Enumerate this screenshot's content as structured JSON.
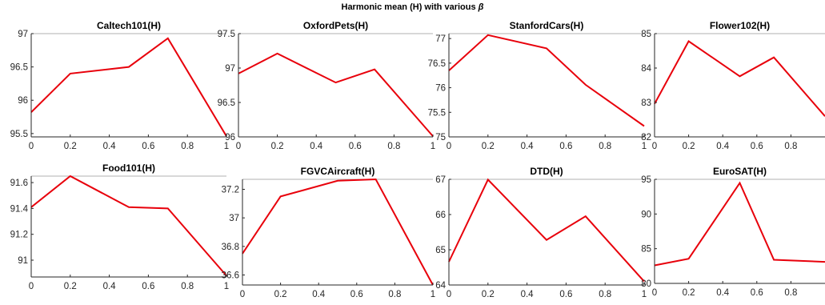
{
  "figure": {
    "title_prefix": "Harmonic mean (H) with various ",
    "title_symbol": "β"
  },
  "chart_data": [
    {
      "type": "line",
      "title": "Caltech101(H)",
      "x": [
        0,
        0.2,
        0.5,
        0.7,
        1
      ],
      "values": [
        95.82,
        96.4,
        96.5,
        96.93,
        95.46
      ],
      "xlim": [
        0,
        1
      ],
      "ylim": [
        95.45,
        97.0
      ],
      "xticks": [
        0,
        0.2,
        0.4,
        0.6,
        0.8,
        1
      ],
      "xtick_labels": [
        "0",
        "0.2",
        "0.4",
        "0.6",
        "0.8",
        "1"
      ],
      "yticks": [
        95.5,
        96,
        96.5,
        97
      ],
      "ytick_labels": [
        "95.5",
        "96",
        "96.5",
        "97"
      ],
      "color": "#e8000b"
    },
    {
      "type": "line",
      "title": "OxfordPets(H)",
      "x": [
        0,
        0.2,
        0.5,
        0.7,
        1
      ],
      "values": [
        96.92,
        97.21,
        96.79,
        96.98,
        96.01
      ],
      "xlim": [
        0,
        1
      ],
      "ylim": [
        96.0,
        97.5
      ],
      "xticks": [
        0,
        0.2,
        0.4,
        0.6,
        0.8,
        1
      ],
      "xtick_labels": [
        "0",
        "0.2",
        "0.4",
        "0.6",
        "0.8",
        "1"
      ],
      "yticks": [
        96,
        96.5,
        97,
        97.5
      ],
      "ytick_labels": [
        "96",
        "96.5",
        "97",
        "97.5"
      ],
      "color": "#e8000b"
    },
    {
      "type": "line",
      "title": "StanfordCars(H)",
      "x": [
        0,
        0.2,
        0.5,
        0.7,
        1
      ],
      "values": [
        76.35,
        77.07,
        76.8,
        76.06,
        75.22
      ],
      "xlim": [
        0,
        1
      ],
      "ylim": [
        75.0,
        77.1
      ],
      "xticks": [
        0,
        0.2,
        0.4,
        0.6,
        0.8,
        1
      ],
      "xtick_labels": [
        "0",
        "0.2",
        "0.4",
        "0.6",
        "0.8",
        "1"
      ],
      "yticks": [
        75,
        75.5,
        76,
        76.5,
        77
      ],
      "ytick_labels": [
        "75",
        "75.5",
        "76",
        "76.5",
        "77"
      ],
      "color": "#e8000b"
    },
    {
      "type": "line",
      "title": "Flower102(H)",
      "x": [
        0,
        0.2,
        0.5,
        0.7,
        1
      ],
      "values": [
        82.96,
        84.78,
        83.76,
        84.31,
        82.6
      ],
      "xlim": [
        0,
        1
      ],
      "ylim": [
        82.0,
        85.0
      ],
      "xticks": [
        0,
        0.2,
        0.4,
        0.6,
        0.8
      ],
      "xtick_labels": [
        "0",
        "0.2",
        "0.4",
        "0.6",
        "0.8"
      ],
      "yticks": [
        82,
        83,
        84,
        85
      ],
      "ytick_labels": [
        "82",
        "83",
        "84",
        "85"
      ],
      "color": "#e8000b"
    },
    {
      "type": "line",
      "title": "Food101(H)",
      "x": [
        0,
        0.2,
        0.5,
        0.7,
        1
      ],
      "values": [
        91.41,
        91.65,
        91.41,
        91.4,
        90.88
      ],
      "xlim": [
        0,
        1
      ],
      "ylim": [
        90.87,
        91.65
      ],
      "xticks": [
        0,
        0.2,
        0.4,
        0.6,
        0.8,
        1
      ],
      "xtick_labels": [
        "0",
        "0.2",
        "0.4",
        "0.6",
        "0.8",
        "1"
      ],
      "yticks": [
        91,
        91.2,
        91.4,
        91.6
      ],
      "ytick_labels": [
        "91",
        "91.2",
        "91.4",
        "91.6"
      ],
      "color": "#e8000b"
    },
    {
      "type": "line",
      "title": "FGVCAircraft(H)",
      "x": [
        0,
        0.2,
        0.5,
        0.7,
        1
      ],
      "values": [
        36.75,
        37.15,
        37.26,
        37.27,
        36.53
      ],
      "xlim": [
        0,
        1
      ],
      "ylim": [
        36.53,
        37.27
      ],
      "xticks": [
        0,
        0.2,
        0.4,
        0.6,
        0.8,
        1
      ],
      "xtick_labels": [
        "0",
        "0.2",
        "0.4",
        "0.6",
        "0.8",
        "1"
      ],
      "yticks": [
        36.6,
        36.8,
        37,
        37.2
      ],
      "ytick_labels": [
        "36.6",
        "36.8",
        "37",
        "37.2"
      ],
      "color": "#e8000b"
    },
    {
      "type": "line",
      "title": "DTD(H)",
      "x": [
        0,
        0.2,
        0.5,
        0.7,
        1
      ],
      "values": [
        64.66,
        66.99,
        65.28,
        65.95,
        64.1
      ],
      "xlim": [
        0,
        1
      ],
      "ylim": [
        64.0,
        67.0
      ],
      "xticks": [
        0,
        0.2,
        0.4,
        0.6,
        0.8,
        1
      ],
      "xtick_labels": [
        "0",
        "0.2",
        "0.4",
        "0.6",
        "0.8",
        "1"
      ],
      "yticks": [
        64,
        65,
        66,
        67
      ],
      "ytick_labels": [
        "64",
        "65",
        "66",
        "67"
      ],
      "color": "#e8000b"
    },
    {
      "type": "line",
      "title": "EuroSAT(H)",
      "x": [
        0,
        0.2,
        0.5,
        0.7,
        1
      ],
      "values": [
        82.6,
        83.55,
        94.47,
        83.4,
        83.1
      ],
      "xlim": [
        0,
        1
      ],
      "ylim": [
        80.0,
        95.0
      ],
      "xticks": [
        0,
        0.2,
        0.4,
        0.6,
        0.8
      ],
      "xtick_labels": [
        "0",
        "0.2",
        "0.4",
        "0.6",
        "0.8"
      ],
      "yticks": [
        80,
        85,
        90,
        95
      ],
      "ytick_labels": [
        "80",
        "85",
        "90",
        "95"
      ],
      "color": "#e8000b"
    }
  ]
}
